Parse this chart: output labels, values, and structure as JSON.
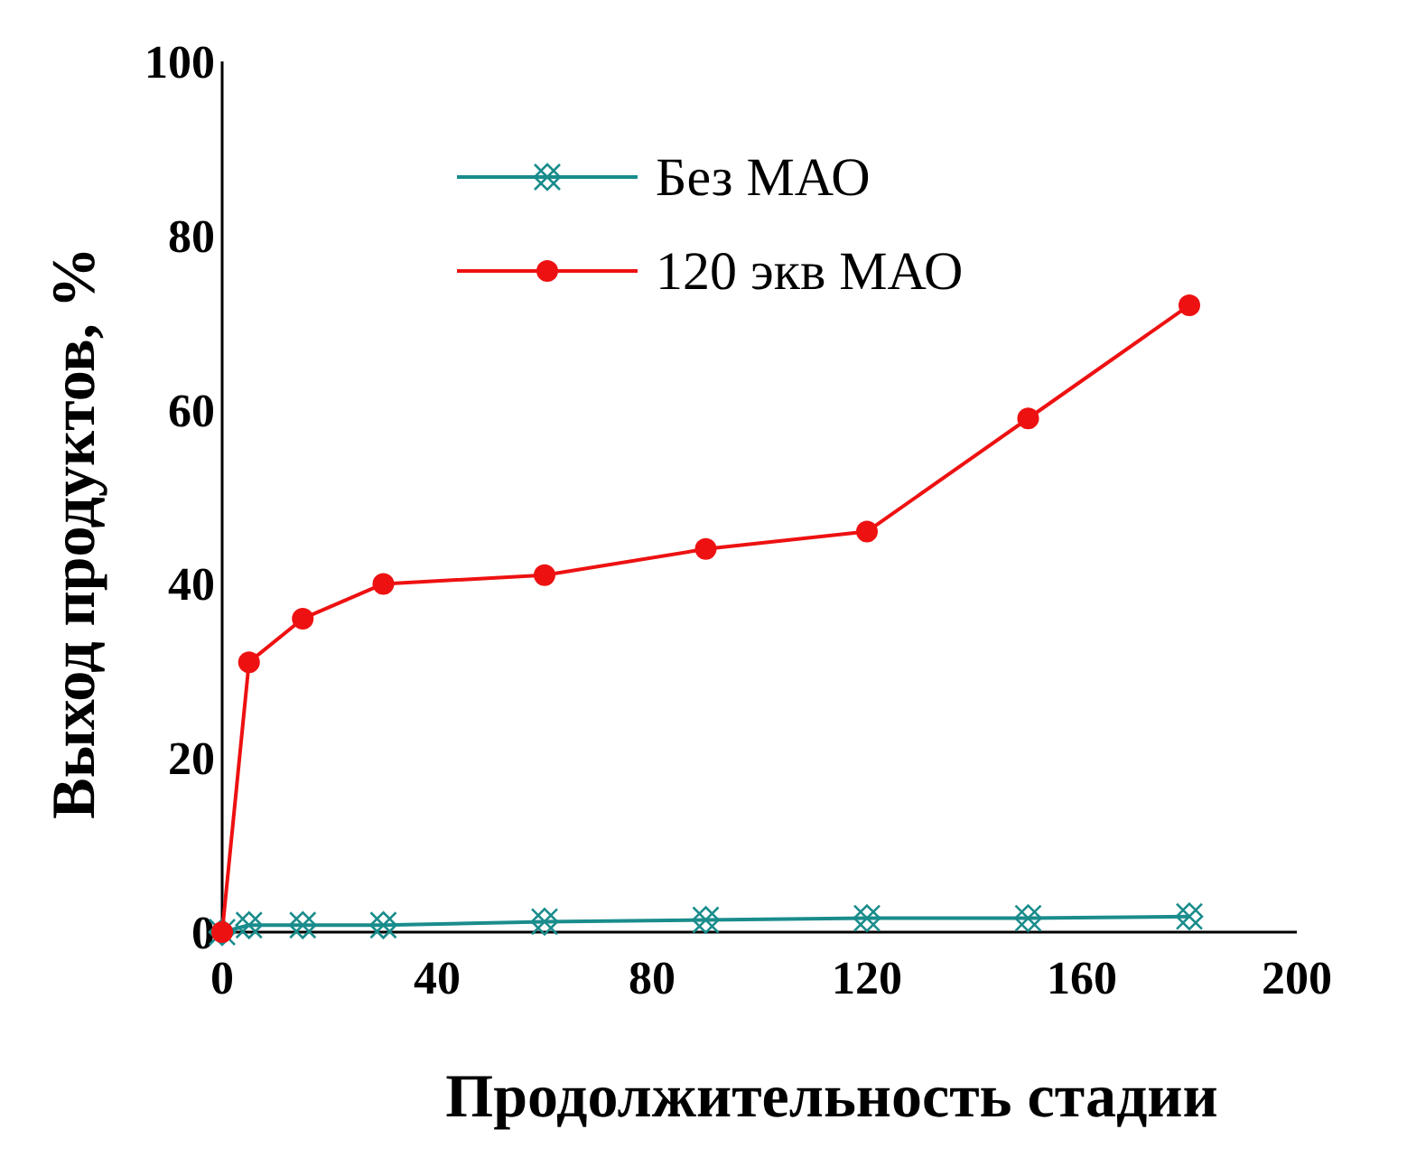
{
  "chart_data": {
    "type": "line",
    "xlabel": "Продолжительность стадии",
    "ylabel": "Выход продуктов, %",
    "xlim": [
      0,
      200
    ],
    "xticks": [
      0,
      40,
      80,
      120,
      160,
      200
    ],
    "ylim": [
      0,
      100
    ],
    "yticks": [
      0,
      20,
      40,
      60,
      80,
      100
    ],
    "legend": "top",
    "grid": false,
    "series": [
      {
        "name": "Без МАО",
        "color": "#1a8c8c",
        "marker": "cross",
        "x": [
          0,
          5,
          15,
          30,
          60,
          90,
          120,
          150,
          180
        ],
        "values": [
          0,
          0.8,
          0.8,
          0.8,
          1.2,
          1.4,
          1.6,
          1.6,
          1.8
        ]
      },
      {
        "name": "120 экв МАО",
        "color": "#ee1111",
        "marker": "circle",
        "x": [
          0,
          5,
          15,
          30,
          60,
          90,
          120,
          150,
          180
        ],
        "values": [
          0,
          31,
          36,
          40,
          41,
          44,
          46,
          59,
          72
        ]
      }
    ]
  }
}
